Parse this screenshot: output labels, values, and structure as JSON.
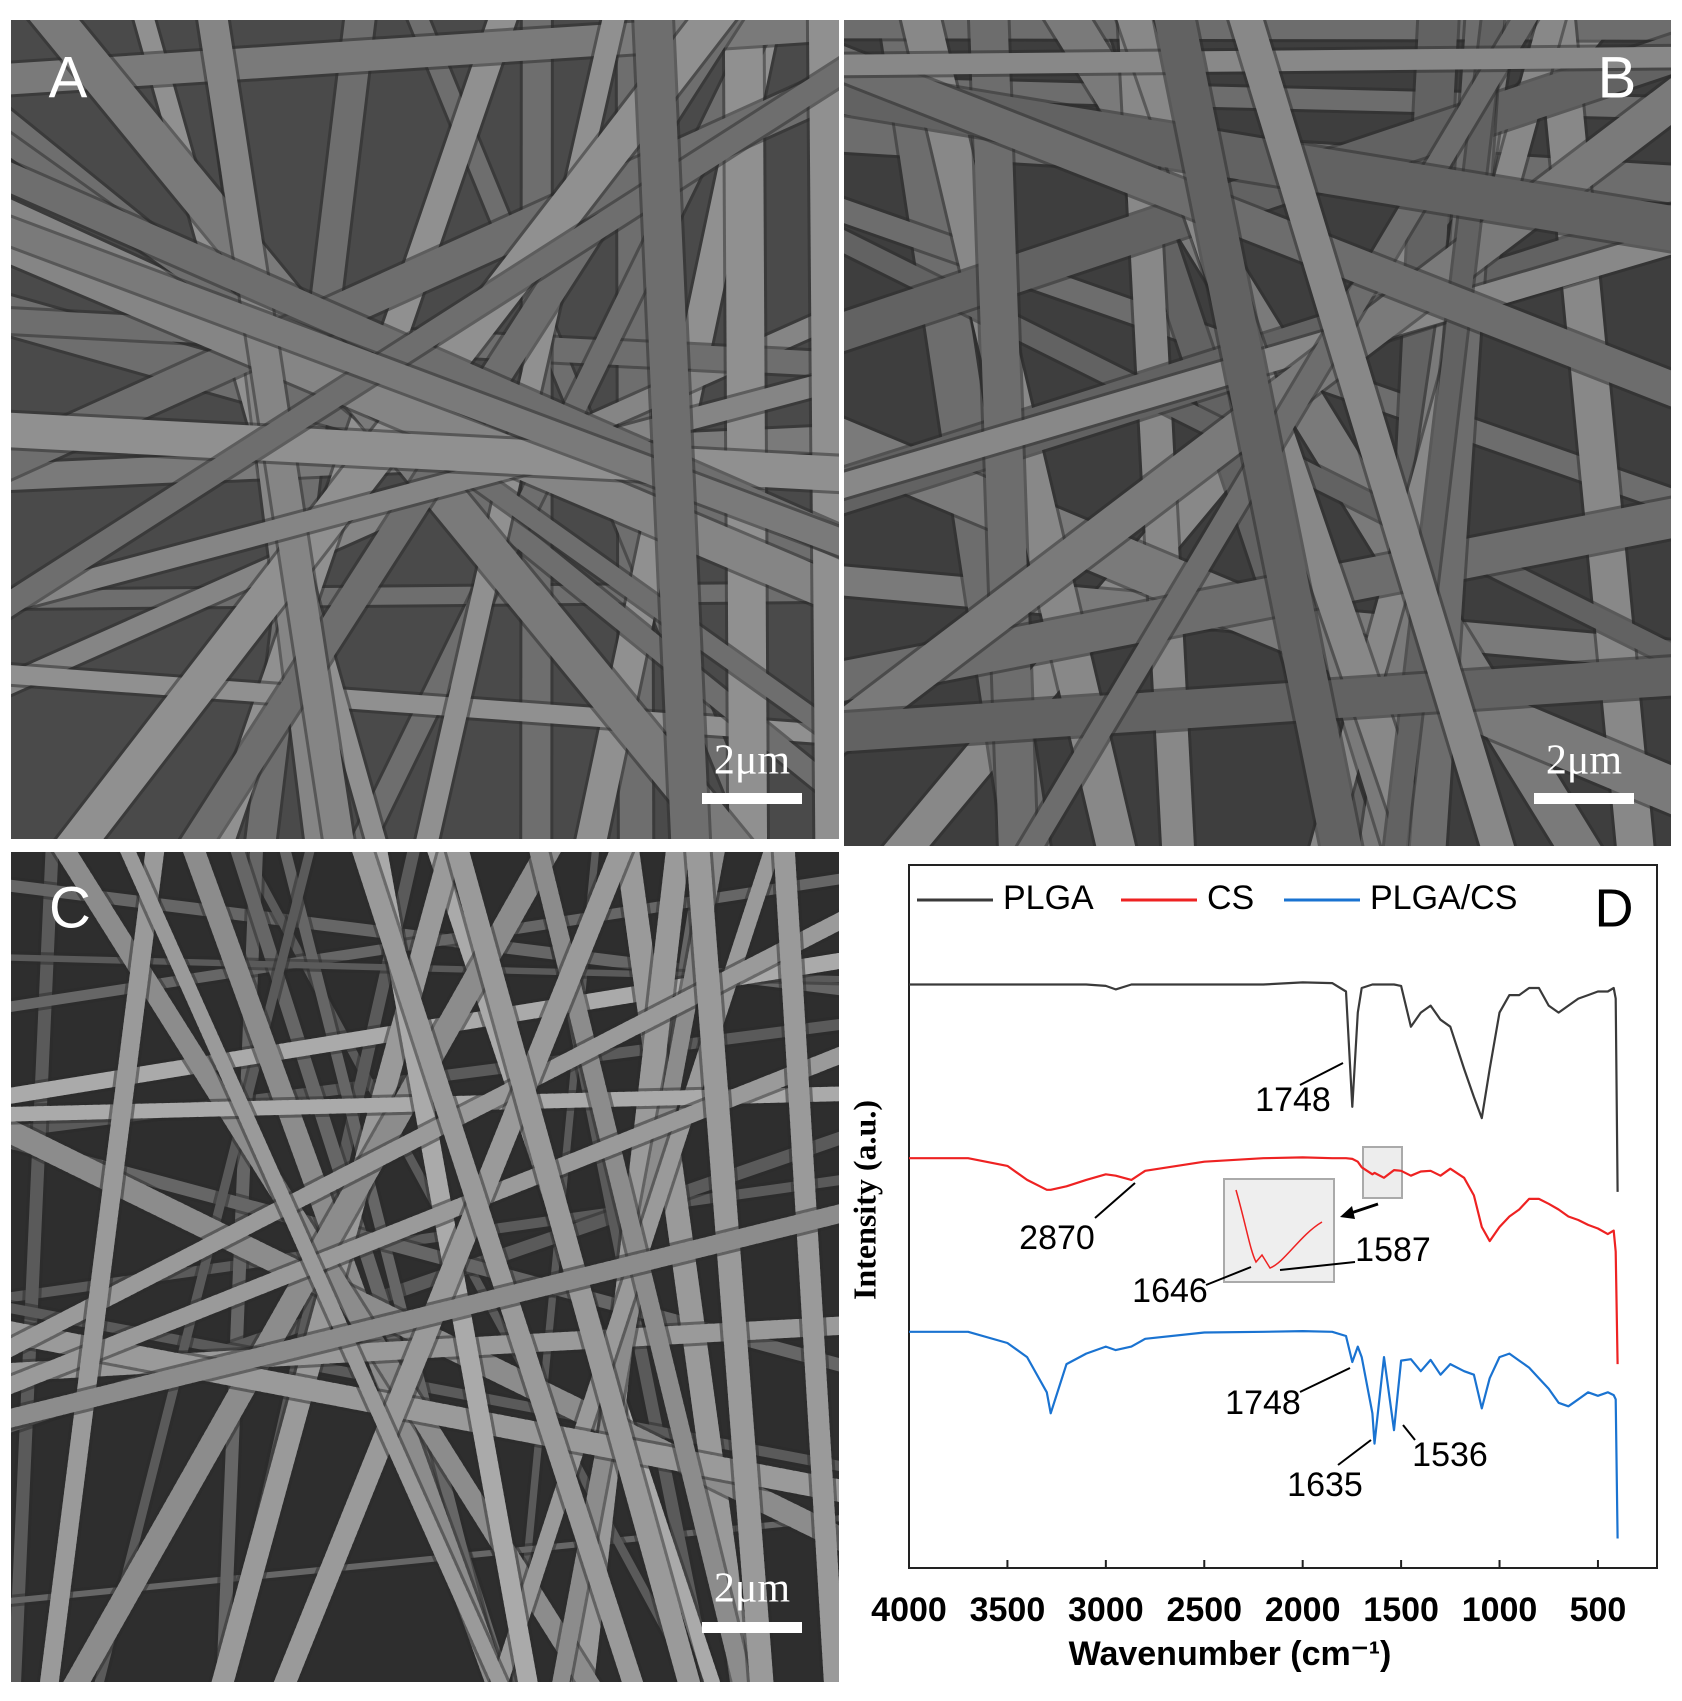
{
  "panels": [
    {
      "label": "A",
      "scale_bar": "2μm"
    },
    {
      "label": "B",
      "scale_bar": "2μm"
    },
    {
      "label": "C",
      "scale_bar": "2μm"
    }
  ],
  "chart_data": {
    "type": "line",
    "label": "D",
    "x_label": "Wavenumber (cm⁻¹)",
    "y_label": "Intensity (a.u.)",
    "xlim": [
      4000,
      200
    ],
    "xticks": [
      4000,
      3500,
      3000,
      2500,
      2000,
      1500,
      1000,
      500
    ],
    "ylim": [
      0,
      100
    ],
    "legend": "top",
    "x": [
      4000,
      3700,
      3500,
      3400,
      3300,
      3280,
      3200,
      3100,
      3000,
      2950,
      2870,
      2800,
      2500,
      2200,
      2000,
      1850,
      1780,
      1748,
      1720,
      1700,
      1646,
      1635,
      1587,
      1536,
      1500,
      1450,
      1400,
      1350,
      1300,
      1250,
      1180,
      1130,
      1090,
      1050,
      1000,
      950,
      900,
      850,
      800,
      750,
      700,
      650,
      600,
      550,
      500,
      450,
      420,
      410,
      400
    ],
    "series": [
      {
        "name": "PLGA",
        "color": "#3a3a3a",
        "values": [
          83,
          83,
          83,
          83,
          83,
          83,
          83,
          83,
          82.8,
          82.3,
          83,
          83,
          83,
          83,
          83.3,
          83.2,
          82,
          65.6,
          79,
          82.5,
          83,
          83,
          83,
          83,
          82.8,
          77,
          79,
          80,
          78,
          77,
          71,
          67,
          64,
          71,
          79,
          81.5,
          81.5,
          82.5,
          82.5,
          80,
          79,
          80,
          81,
          81.5,
          82,
          82,
          82.5,
          81,
          53.5
        ]
      },
      {
        "name": "CS",
        "color": "#ee2222",
        "values": [
          58.3,
          58.3,
          57.2,
          55.2,
          53.8,
          53.8,
          54.3,
          55.2,
          56,
          55.8,
          55.2,
          56.5,
          57.8,
          58.3,
          58.4,
          58.3,
          58.3,
          58.2,
          57.8,
          57,
          56,
          56.2,
          55.5,
          56.6,
          56.5,
          55.8,
          56.4,
          56.5,
          55.8,
          56.8,
          55.5,
          53,
          48.5,
          46.5,
          48.5,
          50,
          51,
          52.5,
          52.5,
          51.8,
          51,
          50,
          49.5,
          48.8,
          48.3,
          47.5,
          48,
          45,
          29
        ]
      },
      {
        "name": "PLGA/CS",
        "color": "#1a73d1",
        "values": [
          33.6,
          33.6,
          32,
          30,
          25,
          22,
          29,
          30.5,
          31.5,
          31,
          31.5,
          32.6,
          33.5,
          33.6,
          33.7,
          33.6,
          33,
          29.3,
          31.5,
          30,
          22,
          17.7,
          30,
          19.6,
          29.5,
          29.7,
          28,
          29.6,
          27.5,
          29,
          28,
          27.5,
          22.7,
          27,
          30,
          30.5,
          29.5,
          28.5,
          27,
          25.5,
          23.5,
          23,
          24,
          25,
          24.5,
          25,
          24.6,
          24,
          4.2
        ]
      }
    ],
    "annotations": [
      "1748",
      "2870",
      "1646",
      "1587",
      "1748",
      "1635",
      "1536"
    ]
  }
}
